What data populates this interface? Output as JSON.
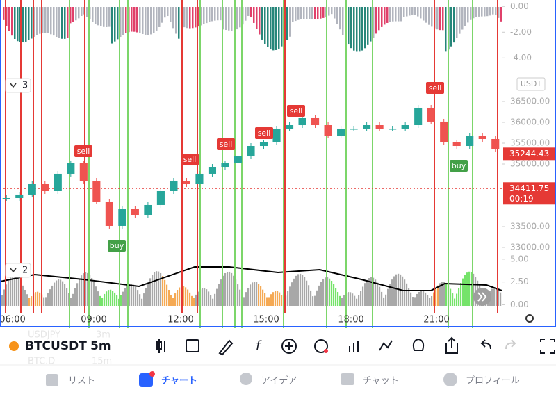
{
  "chart": {
    "type": "candlestick",
    "symbol": "BTCUSDT",
    "interval": "5m",
    "currency": "USDT",
    "values": [
      34183,
      34267,
      34517,
      34350,
      34767,
      35017,
      34600,
      34100,
      33517,
      33933,
      33767,
      34017,
      34350,
      34600,
      34517,
      34767,
      34933,
      35017,
      35183,
      35433,
      35517,
      35850,
      35933,
      36100,
      35933,
      35683,
      35850,
      35850,
      35933,
      35850,
      35850,
      35933,
      36350,
      36017,
      35517,
      35433,
      35683,
      35600,
      35350
    ],
    "ylim": [
      32850,
      37183
    ],
    "yticks": [
      {
        "value": 33000,
        "label": "33000.00"
      },
      {
        "value": 33500,
        "label": "33500.00"
      },
      {
        "value": 35000,
        "label": "35000.00"
      },
      {
        "value": 35500,
        "label": "35500.00"
      },
      {
        "value": 36000,
        "label": "36000.00"
      },
      {
        "value": 36500,
        "label": "36500.00"
      }
    ],
    "last_price": {
      "value": 35244.43,
      "label": "35244.43"
    },
    "mark_price": {
      "value": 34411.75,
      "label": "34411.75"
    },
    "countdown": "00:19",
    "time_labels": [
      "06:00",
      "09:00",
      "12:00",
      "15:00",
      "18:00",
      "21:00"
    ],
    "oscillator": {
      "pane_label": "3",
      "ylim": [
        0.5,
        -4.9
      ],
      "yticks": [
        {
          "value": 0,
          "label": "0.00"
        },
        {
          "value": -2,
          "label": "-2.00"
        },
        {
          "value": -4,
          "label": "-4.00"
        }
      ]
    },
    "volume": {
      "pane_label": "2",
      "ylim": [
        -0.5,
        5.6
      ],
      "yticks": [
        {
          "value": 5,
          "label": "5.00"
        },
        {
          "value": 2.5,
          "label": "2.50"
        },
        {
          "value": 0,
          "label": "0.00"
        }
      ]
    },
    "signals": [
      "sell",
      "sell",
      "sell",
      "sell",
      "sell",
      "sell",
      "buy",
      "buy"
    ]
  },
  "toolbar": {
    "symbol": "BTCUSDT",
    "interval": "5m",
    "watch_symbols": [
      "USDJPY",
      "BTC.D"
    ],
    "watch_intervals": [
      "3m",
      "15m"
    ]
  },
  "nav": [
    "リスト",
    "チャート",
    "アイデア",
    "チャット",
    "プロフィール"
  ]
}
